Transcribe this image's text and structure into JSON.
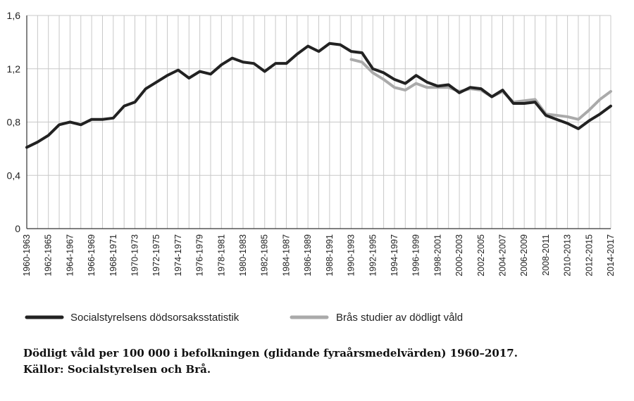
{
  "chart_data": {
    "type": "line",
    "categories": [
      "1960-1963",
      "1961-1964",
      "1962-1965",
      "1963-1966",
      "1964-1967",
      "1965-1968",
      "1966-1969",
      "1967-1970",
      "1968-1971",
      "1969-1972",
      "1970-1973",
      "1971-1974",
      "1972-1975",
      "1973-1976",
      "1974-1977",
      "1975-1978",
      "1976-1979",
      "1977-1980",
      "1978-1981",
      "1979-1982",
      "1980-1983",
      "1981-1984",
      "1982-1985",
      "1983-1986",
      "1984-1987",
      "1985-1988",
      "1986-1989",
      "1987-1990",
      "1988-1991",
      "1989-1992",
      "1990-1993",
      "1991-1994",
      "1992-1995",
      "1993-1996",
      "1994-1997",
      "1995-1998",
      "1996-1999",
      "1997-2000",
      "1998-2001",
      "1999-2002",
      "2000-2003",
      "2001-2004",
      "2002-2005",
      "2003-2006",
      "2004-2007",
      "2005-2008",
      "2006-2009",
      "2007-2010",
      "2008-2011",
      "2009-2012",
      "2010-2013",
      "2011-2014",
      "2012-2015",
      "2013-2016",
      "2014-2017"
    ],
    "tick_labels": [
      "1960-1963",
      "1962-1965",
      "1964-1967",
      "1966-1969",
      "1968-1971",
      "1970-1973",
      "1972-1975",
      "1974-1977",
      "1976-1979",
      "1978-1981",
      "1980-1983",
      "1982-1985",
      "1984-1987",
      "1986-1989",
      "1988-1991",
      "1990-1993",
      "1992-1995",
      "1994-1997",
      "1996-1999",
      "1998-2001",
      "2000-2003",
      "2002-2005",
      "2004-2007",
      "2006-2009",
      "2008-2011",
      "2010-2013",
      "2012-2015",
      "2014-2017"
    ],
    "y_ticks": [
      "0",
      "0,4",
      "0,8",
      "1,2",
      "1,6"
    ],
    "ylim": [
      0,
      1.6
    ],
    "grid": true,
    "series": [
      {
        "name": "Socialstyrelsens dödsorsaksstatistik",
        "color": "#222222",
        "values": [
          0.61,
          0.65,
          0.7,
          0.78,
          0.8,
          0.78,
          0.82,
          0.82,
          0.83,
          0.92,
          0.95,
          1.05,
          1.1,
          1.15,
          1.19,
          1.13,
          1.18,
          1.16,
          1.23,
          1.28,
          1.25,
          1.24,
          1.18,
          1.24,
          1.24,
          1.31,
          1.37,
          1.33,
          1.39,
          1.38,
          1.33,
          1.32,
          1.2,
          1.17,
          1.12,
          1.09,
          1.15,
          1.1,
          1.07,
          1.08,
          1.02,
          1.06,
          1.05,
          0.99,
          1.04,
          0.94,
          0.94,
          0.95,
          0.85,
          0.82,
          0.79,
          0.75,
          0.81,
          0.86,
          0.92
        ]
      },
      {
        "name": "Brås studier av dödligt våld",
        "color": "#aaaaaa",
        "values": [
          null,
          null,
          null,
          null,
          null,
          null,
          null,
          null,
          null,
          null,
          null,
          null,
          null,
          null,
          null,
          null,
          null,
          null,
          null,
          null,
          null,
          null,
          null,
          null,
          null,
          null,
          null,
          null,
          null,
          null,
          1.27,
          1.25,
          1.17,
          1.12,
          1.06,
          1.04,
          1.09,
          1.06,
          1.06,
          1.06,
          1.03,
          1.05,
          1.04,
          0.99,
          1.03,
          0.95,
          0.96,
          0.97,
          0.86,
          0.85,
          0.84,
          0.82,
          0.89,
          0.97,
          1.03
        ]
      }
    ],
    "legend_position": "bottom"
  },
  "caption": {
    "line1": "Dödligt våld per 100 000 i befolkningen (glidande fyraårsmedelvärden) 1960–2017.",
    "line2": "Källor: Socialstyrelsen och Brå."
  }
}
